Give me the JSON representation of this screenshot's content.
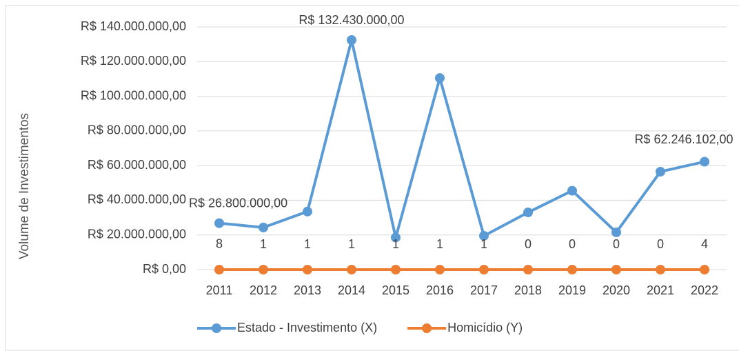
{
  "chart_data": {
    "type": "line",
    "y_label": "Volume de Investimentos",
    "categories": [
      "2011",
      "2012",
      "2013",
      "2014",
      "2015",
      "2016",
      "2017",
      "2018",
      "2019",
      "2020",
      "2021",
      "2022"
    ],
    "series": [
      {
        "name": "Estado - Investimento (X)",
        "color": "#5b9bd5",
        "values": [
          26800000,
          24300000,
          33500000,
          132430000,
          18500000,
          110500000,
          19500000,
          33000000,
          45500000,
          21500000,
          56500000,
          62246102
        ],
        "value_labels": [
          "R$ 26.800.000,00",
          null,
          null,
          "R$ 132.430.000,00",
          null,
          null,
          null,
          null,
          null,
          null,
          null,
          "R$ 62.246.102,00"
        ]
      },
      {
        "name": "Homicídio (Y)",
        "color": "#ed7d31",
        "values": [
          8,
          1,
          1,
          1,
          1,
          1,
          1,
          0,
          0,
          0,
          0,
          4
        ]
      }
    ],
    "ylim": [
      0,
      140000000
    ],
    "yticks": [
      {
        "value": 0,
        "label": "R$ 0,00"
      },
      {
        "value": 20000000,
        "label": "R$ 20.000.000,00"
      },
      {
        "value": 40000000,
        "label": "R$ 40.000.000,00"
      },
      {
        "value": 60000000,
        "label": "R$ 60.000.000,00"
      },
      {
        "value": 80000000,
        "label": "R$ 80.000.000,00"
      },
      {
        "value": 100000000,
        "label": "R$ 100.000.000,00"
      },
      {
        "value": 120000000,
        "label": "R$ 120.000.000,00"
      },
      {
        "value": 140000000,
        "label": "R$ 140.000.000,00"
      }
    ],
    "grid": true,
    "legend": "bottom"
  }
}
